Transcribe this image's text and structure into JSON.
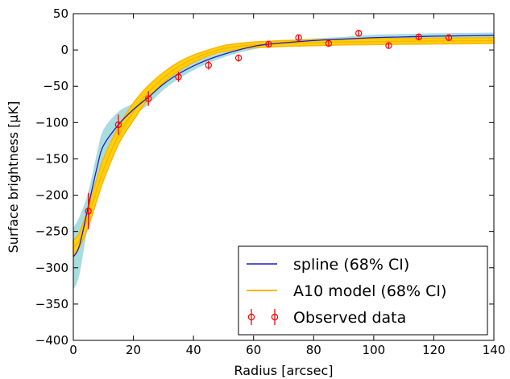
{
  "chart_data": {
    "type": "line",
    "title": "",
    "xlabel": "Radius [arcsec]",
    "ylabel": "Surface brightness [μK]",
    "xlim": [
      0,
      140
    ],
    "ylim": [
      -400,
      50
    ],
    "x_ticks": [
      0,
      20,
      40,
      60,
      80,
      100,
      120,
      140
    ],
    "y_ticks": [
      -400,
      -350,
      -300,
      -250,
      -200,
      -150,
      -100,
      -50,
      0,
      50
    ],
    "grid": false,
    "legend_position": "bottom-right",
    "colors": {
      "spline": "#1f1fbf",
      "spline_band": "#a8dde0",
      "a10": "#ffb400",
      "a10_band": "#ffd000",
      "observed": "#ff0000"
    },
    "series": [
      {
        "name": "spline (68% CI)",
        "kind": "line_with_band",
        "x": [
          0,
          2,
          5,
          8,
          10,
          15,
          20,
          25,
          30,
          35,
          40,
          45,
          50,
          55,
          60,
          65,
          70,
          80,
          90,
          100,
          110,
          120,
          130,
          140
        ],
        "y": [
          -285,
          -270,
          -215,
          -160,
          -132,
          -103,
          -82,
          -65,
          -47,
          -33,
          -22,
          -13,
          -6,
          0,
          5,
          8,
          10,
          13,
          15,
          17,
          18,
          19,
          19.5,
          20
        ],
        "lower": [
          -330,
          -310,
          -240,
          -185,
          -160,
          -125,
          -93,
          -75,
          -55,
          -40,
          -28,
          -18,
          -10,
          -4,
          1,
          4,
          6,
          9,
          11,
          12,
          13,
          14,
          14.5,
          15
        ],
        "upper": [
          -245,
          -230,
          -195,
          -140,
          -110,
          -85,
          -73,
          -56,
          -40,
          -27,
          -17,
          -9,
          -3,
          4,
          8,
          11,
          13,
          16,
          18,
          21,
          22,
          23,
          23.5,
          24
        ]
      },
      {
        "name": "A10 model (68% CI)",
        "kind": "line_with_band",
        "x": [
          0,
          2,
          5,
          8,
          10,
          15,
          20,
          25,
          30,
          35,
          40,
          45,
          50,
          55,
          60,
          65,
          70,
          80,
          90,
          100,
          110,
          120,
          130,
          140
        ],
        "y": [
          -272,
          -262,
          -230,
          -190,
          -165,
          -118,
          -85,
          -58,
          -38,
          -23,
          -12,
          -4,
          2,
          5,
          7,
          8,
          9,
          10,
          11,
          11.5,
          12,
          12.3,
          12.6,
          13
        ],
        "lower": [
          -282,
          -272,
          -243,
          -205,
          -180,
          -130,
          -97,
          -67,
          -45,
          -29,
          -17,
          -8,
          -2,
          1,
          3,
          4,
          5,
          6,
          7,
          7.5,
          8,
          8.3,
          8.6,
          9
        ],
        "upper": [
          -262,
          -252,
          -217,
          -175,
          -150,
          -106,
          -73,
          -49,
          -31,
          -17,
          -7,
          0,
          6,
          9,
          11,
          12,
          13,
          14,
          15,
          15.5,
          16,
          16.3,
          16.6,
          17
        ]
      },
      {
        "name": "Observed data",
        "kind": "errorbar",
        "x": [
          5,
          15,
          25,
          35,
          45,
          55,
          65,
          75,
          85,
          95,
          105,
          115,
          125
        ],
        "y": [
          -222,
          -103,
          -67,
          -37,
          -21,
          -11,
          8,
          17,
          9,
          23,
          6,
          18,
          17
        ],
        "yerr": [
          25,
          14,
          10,
          7,
          6,
          5,
          4,
          4,
          4,
          4,
          4,
          4,
          4
        ]
      }
    ]
  }
}
